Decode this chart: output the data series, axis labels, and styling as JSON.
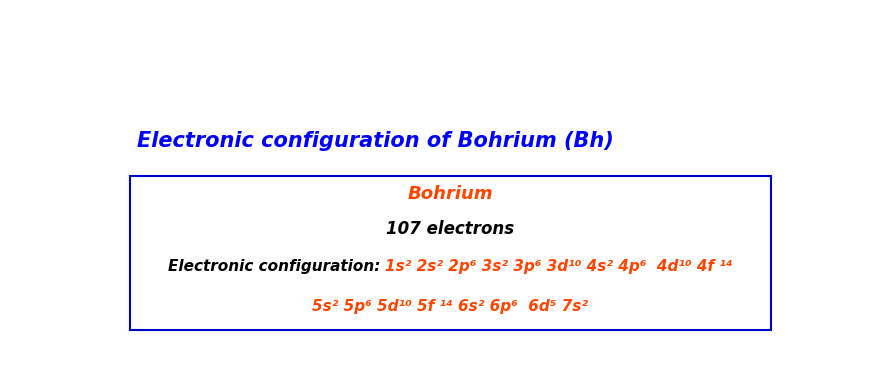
{
  "title": "Electronic configuration of Bohrium (Bh)",
  "title_color": "#0000FF",
  "title_fontsize": 15,
  "title_style": "italic",
  "title_weight": "bold",
  "box_element_name": "Bohrium",
  "box_element_name_color": "#FF4500",
  "box_electrons_text": "107 electrons",
  "box_electrons_color": "#000000",
  "box_config_label": "Electronic configuration: ",
  "box_config_label_color": "#000000",
  "box_config_line1": "1s² 2s² 2p⁶ 3s² 3p⁶ 3d¹⁰ 4s² 4p⁶  4d¹⁰ 4f ¹⁴",
  "box_config_line2": "5s² 5p⁶ 5d¹⁰ 5f ¹⁴ 6s² 6p⁶  6d⁵ 7s²",
  "box_config_color": "#FF4500",
  "background_color": "#FFFFFF",
  "box_border_color": "#0000CD",
  "fontsize_name": 13,
  "fontsize_electrons": 12,
  "fontsize_config": 11
}
